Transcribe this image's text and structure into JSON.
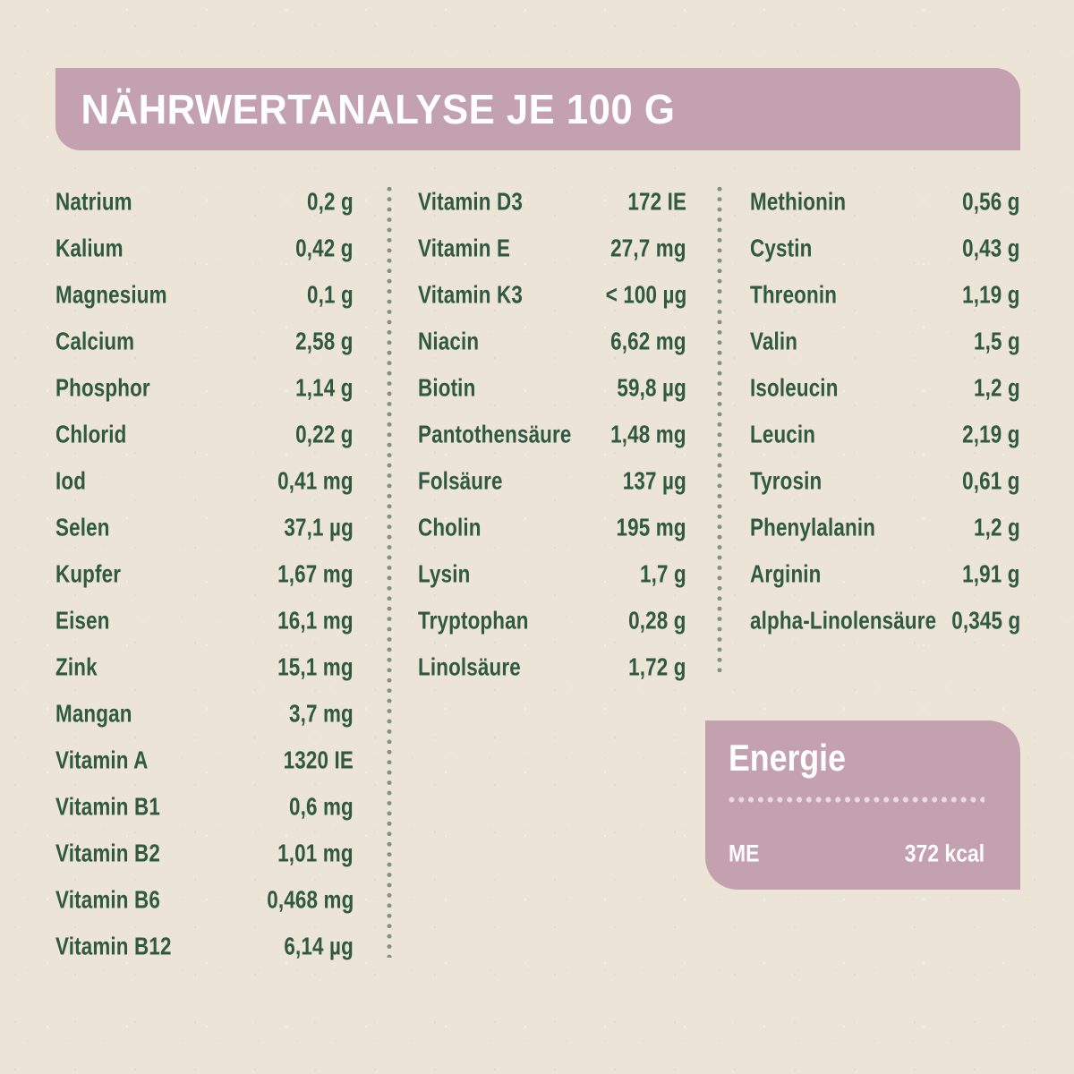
{
  "header": {
    "title": "NÄHRWERTANALYSE JE 100 G"
  },
  "colors": {
    "background": "#ECE4D6",
    "panel_pink": "#C4A1AE",
    "text_green": "#2F5940",
    "separator_dot_green": "#7F947B",
    "divider_dot_pink": "#E9DAE0",
    "text_white": "#FFFFFF"
  },
  "table": {
    "columns": [
      {
        "rows": [
          {
            "label": "Natrium",
            "value": "0,2 g"
          },
          {
            "label": "Kalium",
            "value": "0,42 g"
          },
          {
            "label": "Magnesium",
            "value": "0,1 g"
          },
          {
            "label": "Calcium",
            "value": "2,58 g"
          },
          {
            "label": "Phosphor",
            "value": "1,14 g"
          },
          {
            "label": "Chlorid",
            "value": "0,22 g"
          },
          {
            "label": "Iod",
            "value": "0,41 mg"
          },
          {
            "label": "Selen",
            "value": "37,1 µg"
          },
          {
            "label": "Kupfer",
            "value": "1,67 mg"
          },
          {
            "label": "Eisen",
            "value": "16,1 mg"
          },
          {
            "label": "Zink",
            "value": "15,1 mg"
          },
          {
            "label": "Mangan",
            "value": "3,7 mg"
          },
          {
            "label": "Vitamin A",
            "value": "1320 IE"
          },
          {
            "label": "Vitamin B1",
            "value": "0,6 mg"
          },
          {
            "label": "Vitamin B2",
            "value": "1,01 mg"
          },
          {
            "label": "Vitamin B6",
            "value": "0,468 mg"
          },
          {
            "label": "Vitamin B12",
            "value": "6,14 µg"
          }
        ]
      },
      {
        "rows": [
          {
            "label": "Vitamin D3",
            "value": "172 IE"
          },
          {
            "label": "Vitamin E",
            "value": "27,7 mg"
          },
          {
            "label": "Vitamin K3",
            "value": "< 100 µg"
          },
          {
            "label": "Niacin",
            "value": "6,62 mg"
          },
          {
            "label": "Biotin",
            "value": "59,8 µg"
          },
          {
            "label": "Pantothensäure",
            "value": "1,48 mg"
          },
          {
            "label": "Folsäure",
            "value": "137 µg"
          },
          {
            "label": "Cholin",
            "value": "195 mg"
          },
          {
            "label": "Lysin",
            "value": "1,7 g"
          },
          {
            "label": "Tryptophan",
            "value": "0,28 g"
          },
          {
            "label": "Linolsäure",
            "value": "1,72 g"
          }
        ]
      },
      {
        "rows": [
          {
            "label": "Methionin",
            "value": "0,56 g"
          },
          {
            "label": "Cystin",
            "value": "0,43 g"
          },
          {
            "label": "Threonin",
            "value": "1,19 g"
          },
          {
            "label": "Valin",
            "value": "1,5 g"
          },
          {
            "label": "Isoleucin",
            "value": "1,2 g"
          },
          {
            "label": "Leucin",
            "value": "2,19 g"
          },
          {
            "label": "Tyrosin",
            "value": "0,61 g"
          },
          {
            "label": "Phenylalanin",
            "value": "1,2 g"
          },
          {
            "label": "Arginin",
            "value": "1,91 g"
          },
          {
            "label": "alpha-Linolensäure",
            "value": "0,345 g"
          }
        ]
      }
    ]
  },
  "energy": {
    "title": "Energie",
    "rows": [
      {
        "label": "ME",
        "value": "372 kcal"
      }
    ]
  }
}
